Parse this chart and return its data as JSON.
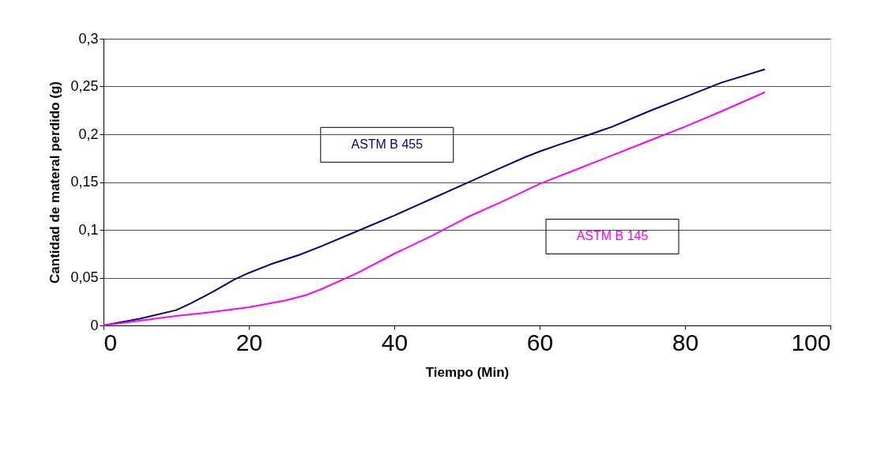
{
  "chart_data": {
    "type": "line",
    "xlabel": "Tiempo (Min)",
    "ylabel": "Cantidad de materal perdido (g)",
    "xlim": [
      0,
      100
    ],
    "xticks": [
      0,
      20,
      40,
      60,
      80,
      100
    ],
    "ylim": [
      0,
      0.3
    ],
    "yticks": [
      0,
      {
        "value": 0.05,
        "label": "0,05"
      },
      {
        "value": 0.1,
        "label": "0,1"
      },
      {
        "value": 0.15,
        "label": "0,15"
      },
      {
        "value": 0.2,
        "label": "0,2"
      },
      {
        "value": 0.25,
        "label": "0,25"
      },
      {
        "value": 0.3,
        "label": "0,3"
      }
    ],
    "grid": "y",
    "legend": false,
    "series": [
      {
        "name": "ASTM B 455",
        "color": "#000080",
        "x": [
          0,
          5,
          10,
          12,
          15,
          18,
          20,
          23,
          27,
          30,
          35,
          40,
          45,
          50,
          55,
          58,
          60,
          63,
          67,
          70,
          75,
          80,
          85,
          91
        ],
        "values": [
          0,
          0.007,
          0.016,
          0.023,
          0.035,
          0.048,
          0.055,
          0.064,
          0.074,
          0.083,
          0.099,
          0.115,
          0.132,
          0.149,
          0.166,
          0.176,
          0.182,
          0.19,
          0.2,
          0.208,
          0.224,
          0.239,
          0.254,
          0.268
        ]
      },
      {
        "name": "ASTM B 145",
        "color": "#ff00ff",
        "x": [
          0,
          5,
          10,
          15,
          20,
          25,
          28,
          30,
          35,
          40,
          45,
          50,
          55,
          60,
          65,
          70,
          75,
          80,
          85,
          91
        ],
        "values": [
          0,
          0.005,
          0.01,
          0.014,
          0.019,
          0.026,
          0.032,
          0.038,
          0.055,
          0.075,
          0.093,
          0.113,
          0.13,
          0.148,
          0.163,
          0.178,
          0.193,
          0.208,
          0.224,
          0.244
        ]
      }
    ]
  }
}
